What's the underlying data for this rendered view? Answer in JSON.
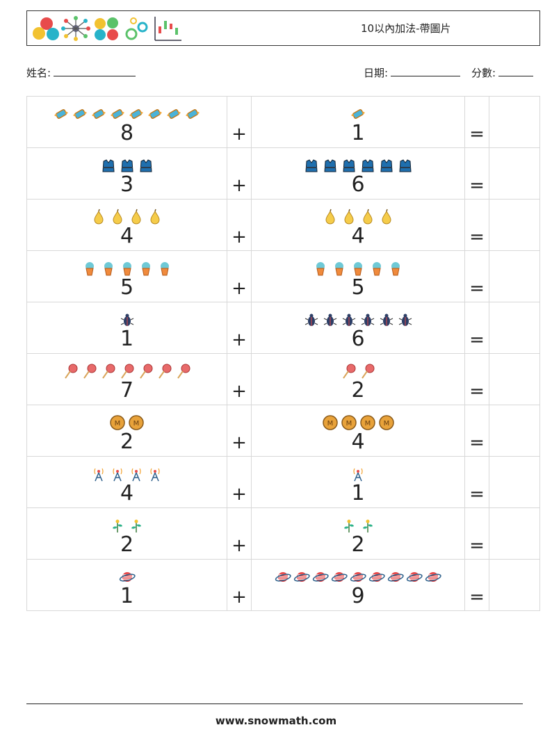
{
  "header": {
    "title": "10以內加法-帶圖片"
  },
  "meta": {
    "name_label": "姓名:",
    "date_label": "日期:",
    "score_label": "分數:"
  },
  "operators": {
    "plus": "+",
    "equals": "="
  },
  "rows": [
    {
      "a": 8,
      "b": 1,
      "icon": "candy-icon"
    },
    {
      "a": 3,
      "b": 6,
      "icon": "life-vest-icon"
    },
    {
      "a": 4,
      "b": 4,
      "icon": "pear-icon"
    },
    {
      "a": 5,
      "b": 5,
      "icon": "ice-cream-icon"
    },
    {
      "a": 1,
      "b": 6,
      "icon": "beetle-icon"
    },
    {
      "a": 7,
      "b": 2,
      "icon": "lollipop-icon"
    },
    {
      "a": 2,
      "b": 4,
      "icon": "coin-icon"
    },
    {
      "a": 4,
      "b": 1,
      "icon": "antenna-icon"
    },
    {
      "a": 2,
      "b": 2,
      "icon": "sprout-icon"
    },
    {
      "a": 1,
      "b": 9,
      "icon": "planet-icon"
    }
  ],
  "footer": {
    "website": "www.snowmath.com"
  }
}
